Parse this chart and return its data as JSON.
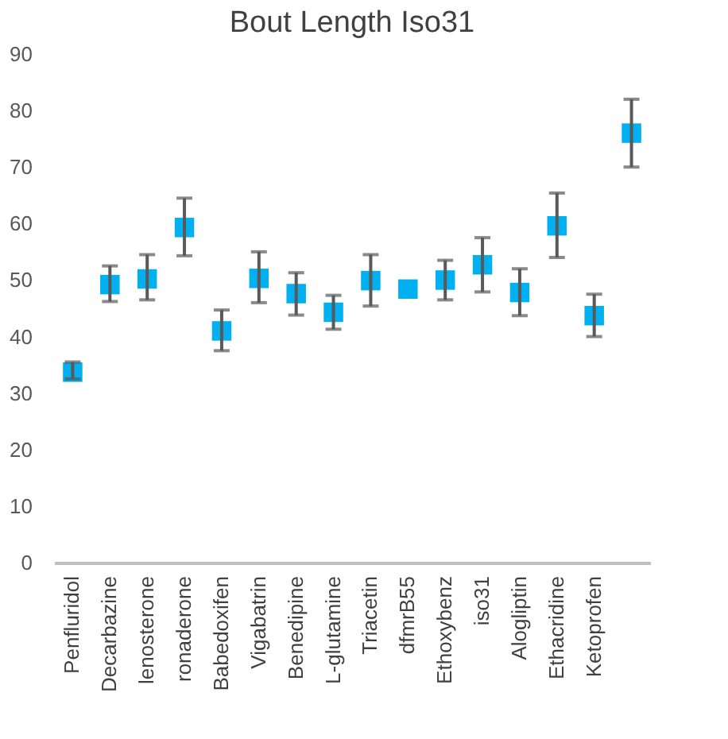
{
  "chart_data": {
    "type": "scatter",
    "title": "Bout Length Iso31",
    "categories": [
      "Penfluridol",
      "Decarbazine",
      "lenosterone",
      "ronaderone",
      "Babedoxifen",
      "Vigabatrin",
      "Benedipine",
      "L-glutamine",
      "Triacetin",
      "dfmrB55",
      "Ethoxybenz",
      "iso31",
      "Alogliptin",
      "Ethacridine",
      "Ketoprofen",
      null
    ],
    "series": [
      {
        "color": "#00b0f0",
        "values": [
          33.7,
          49.2,
          50.2,
          59.3,
          41,
          50.3,
          47.6,
          44.3,
          49.9,
          48.4,
          50,
          52.7,
          47.8,
          59.6,
          43.7,
          76
        ],
        "errors": [
          [
            32.5,
            35.5
          ],
          [
            46.2,
            52.5
          ],
          [
            46.5,
            54.5
          ],
          [
            54.3,
            64.5
          ],
          [
            37.5,
            44.7
          ],
          [
            46,
            55
          ],
          [
            43.8,
            51.3
          ],
          [
            41.3,
            47.3
          ],
          [
            45.4,
            54.5
          ],
          null,
          [
            46.5,
            53.5
          ],
          [
            47.9,
            57.5
          ],
          [
            43.7,
            52
          ],
          [
            54,
            65.4
          ],
          [
            40,
            47.5
          ],
          [
            70,
            82
          ]
        ]
      }
    ],
    "ylim": [
      0,
      90
    ],
    "yticks": [
      0,
      10,
      20,
      30,
      40,
      50,
      60,
      70,
      80,
      90
    ],
    "grid": false,
    "marker": "square"
  }
}
